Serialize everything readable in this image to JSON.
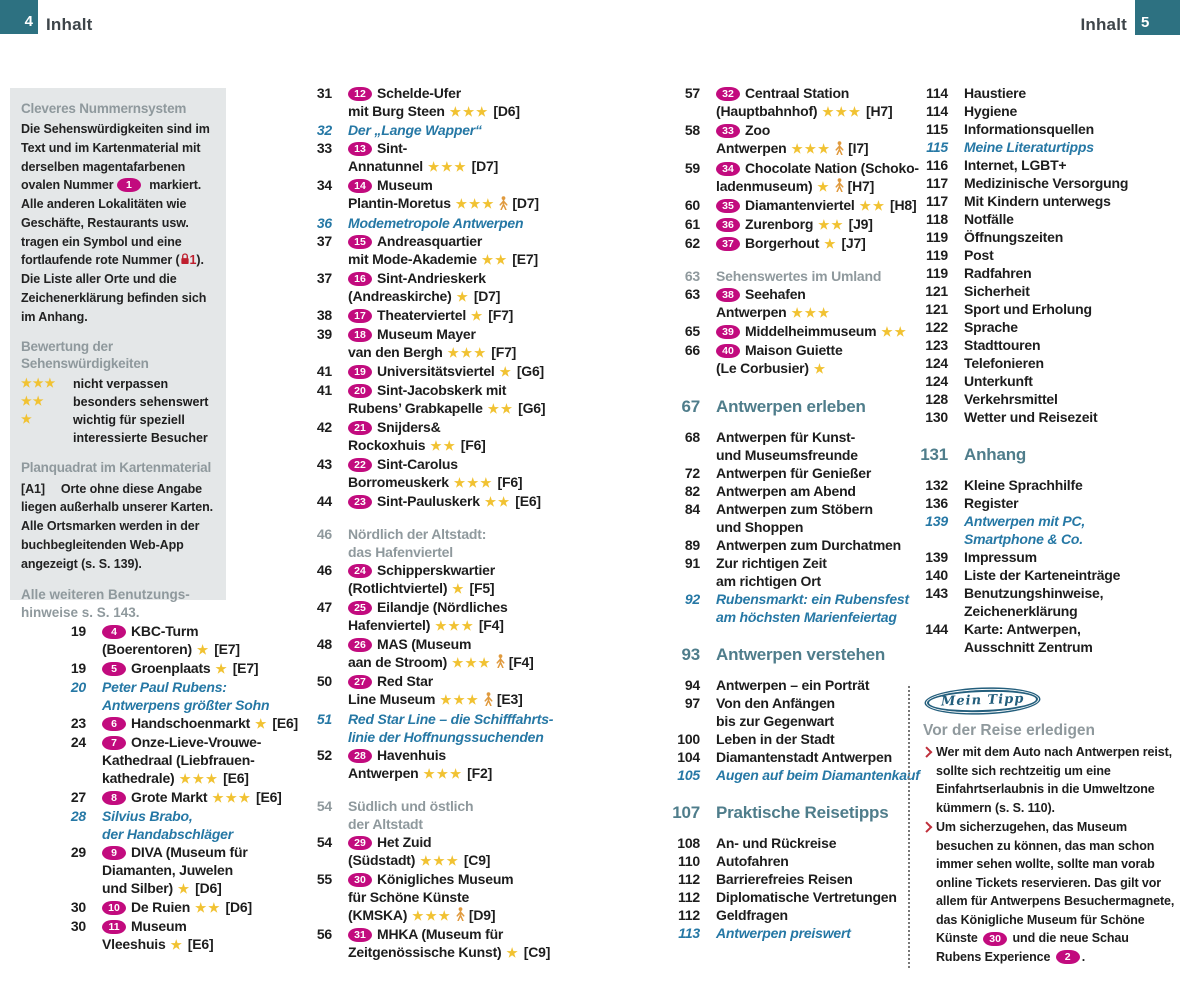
{
  "colors": {
    "teal": "#2d7181",
    "chapter": "#4f7d8b",
    "gray_heading": "#8f999d",
    "magenta": "#c20b7e",
    "link_blue": "#2678a5",
    "star_gold": "#f1c232",
    "red": "#bf2e3a",
    "box_bg": "#e4e7e8",
    "person_orange": "#e09a3e"
  },
  "header": {
    "left_page": "4",
    "left_title": "Inhalt",
    "right_title": "Inhalt",
    "right_page": "5"
  },
  "info_box": {
    "numbering": {
      "heading": "Cleveres Nummernsystem",
      "segments": [
        {
          "text": "Die Sehenswürdigkeiten sind im Text und im Kartenmaterial mit derselben magentafarbenen ovalen Nummer "
        },
        {
          "oval": "1"
        },
        {
          "text": " markiert. Alle anderen Lokalitäten wie Geschäfte, Restaurants usw. tragen ein Symbol und eine fortlaufende rote Nummer ("
        },
        {
          "icon": "red-symbol",
          "red_num": "1"
        },
        {
          "text": "). Die Liste aller Orte und die Zeichenerklärung befinden sich im Anhang."
        }
      ]
    },
    "rating": {
      "heading_lines": [
        "Bewertung der",
        "Sehenswürdigkeiten"
      ],
      "rows": [
        {
          "stars": 3,
          "label_lines": [
            "nicht verpassen"
          ]
        },
        {
          "stars": 2,
          "label_lines": [
            "besonders sehenswert"
          ]
        },
        {
          "stars": 1,
          "label_lines": [
            "wichtig für speziell",
            "interessierte Besucher"
          ]
        }
      ]
    },
    "grid": {
      "heading": "Planquadrat im Kartenmaterial",
      "tag": "[A1]",
      "body": "Orte ohne diese Angabe liegen außerhalb unserer Karten. Alle Ortsmarken werden in der buchbegleitenden Web-App angezeigt (s. S. 139)."
    },
    "footer_lines": [
      "Alle weiteren Benutzungs-",
      "hinweise s. S. 143."
    ]
  },
  "columns": [
    [
      {
        "page": "19",
        "type": "sight",
        "num": "4",
        "lines": [
          "KBC-Turm",
          "(Boerentoren)"
        ],
        "stars": 1,
        "grid": "[E7]"
      },
      {
        "page": "19",
        "type": "sight",
        "num": "5",
        "lines": [
          "Groenplaats"
        ],
        "stars": 1,
        "grid": "[E7]"
      },
      {
        "page": "20",
        "type": "link",
        "lines": [
          "Peter Paul Rubens:",
          "Antwerpens größter Sohn"
        ]
      },
      {
        "page": "23",
        "type": "sight",
        "num": "6",
        "lines": [
          "Handschoenmarkt"
        ],
        "stars": 1,
        "grid": "[E6]"
      },
      {
        "page": "24",
        "type": "sight",
        "num": "7",
        "lines": [
          "Onze-Lieve-Vrouwe-",
          "Kathedraal (Liebfrauen-",
          "kathedrale)"
        ],
        "stars": 3,
        "grid": "[E6]"
      },
      {
        "page": "27",
        "type": "sight",
        "num": "8",
        "lines": [
          "Grote Markt"
        ],
        "stars": 3,
        "grid": "[E6]"
      },
      {
        "page": "28",
        "type": "link",
        "lines": [
          "Silvius Brabo,",
          "der Handabschläger"
        ]
      },
      {
        "page": "29",
        "type": "sight",
        "num": "9",
        "lines": [
          "DIVA (Museum für",
          "Diamanten, Juwelen",
          "und Silber)"
        ],
        "stars": 1,
        "grid": "[D6]"
      },
      {
        "page": "30",
        "type": "sight",
        "num": "10",
        "lines": [
          "De Ruien"
        ],
        "stars": 2,
        "grid": "[D6]"
      },
      {
        "page": "30",
        "type": "sight",
        "num": "11",
        "lines": [
          "Museum",
          "Vleeshuis"
        ],
        "stars": 1,
        "grid": "[E6]"
      }
    ],
    [
      {
        "page": "31",
        "type": "sight",
        "num": "12",
        "lines": [
          "Schelde-Ufer",
          "mit Burg Steen"
        ],
        "stars": 3,
        "grid": "[D6]"
      },
      {
        "page": "32",
        "type": "link",
        "lines": [
          "Der „Lange Wapper“"
        ]
      },
      {
        "page": "33",
        "type": "sight",
        "num": "13",
        "lines": [
          "Sint-",
          "Annatunnel"
        ],
        "stars": 3,
        "grid": "[D7]"
      },
      {
        "page": "34",
        "type": "sight",
        "num": "14",
        "lines": [
          "Museum",
          "Plantin-Moretus"
        ],
        "stars": 3,
        "person": true,
        "grid": "[D7]"
      },
      {
        "page": "36",
        "type": "link",
        "lines": [
          "Modemetropole Antwerpen"
        ]
      },
      {
        "page": "37",
        "type": "sight",
        "num": "15",
        "lines": [
          "Andreasquartier",
          "mit Mode-Akademie"
        ],
        "stars": 2,
        "grid": "[E7]"
      },
      {
        "page": "37",
        "type": "sight",
        "num": "16",
        "lines": [
          "Sint-Andrieskerk",
          "(Andreaskirche)"
        ],
        "stars": 1,
        "grid": "[D7]"
      },
      {
        "page": "38",
        "type": "sight",
        "num": "17",
        "lines": [
          "Theaterviertel"
        ],
        "stars": 1,
        "grid": "[F7]"
      },
      {
        "page": "39",
        "type": "sight",
        "num": "18",
        "lines": [
          "Museum Mayer",
          "van den Bergh"
        ],
        "stars": 3,
        "grid": "[F7]"
      },
      {
        "page": "41",
        "type": "sight",
        "num": "19",
        "lines": [
          "Universitätsviertel"
        ],
        "stars": 1,
        "grid": "[G6]"
      },
      {
        "page": "41",
        "type": "sight",
        "num": "20",
        "lines": [
          "Sint-Jacobskerk mit",
          "Rubens’ Grabkapelle"
        ],
        "stars": 2,
        "grid": "[G6]"
      },
      {
        "page": "42",
        "type": "sight",
        "num": "21",
        "lines": [
          "Snijders&",
          "Rockoxhuis"
        ],
        "stars": 2,
        "grid": "[F6]"
      },
      {
        "page": "43",
        "type": "sight",
        "num": "22",
        "lines": [
          "Sint-Carolus",
          "Borromeuskerk"
        ],
        "stars": 3,
        "grid": "[F6]"
      },
      {
        "page": "44",
        "type": "sight",
        "num": "23",
        "lines": [
          "Sint-Pauluskerk"
        ],
        "stars": 2,
        "grid": "[E6]"
      },
      {
        "page": "46",
        "type": "subhead",
        "lines": [
          "Nördlich der Altstadt:",
          "das Hafenviertel"
        ]
      },
      {
        "page": "46",
        "type": "sight",
        "num": "24",
        "lines": [
          "Schipperskwartier",
          "(Rotlichtviertel)"
        ],
        "stars": 1,
        "grid": "[F5]"
      },
      {
        "page": "47",
        "type": "sight",
        "num": "25",
        "lines": [
          "Eilandje (Nördliches",
          "Hafenviertel)"
        ],
        "stars": 3,
        "grid": "[F4]"
      },
      {
        "page": "48",
        "type": "sight",
        "num": "26",
        "lines": [
          "MAS (Museum",
          "aan de Stroom)"
        ],
        "stars": 3,
        "person": true,
        "grid": "[F4]"
      },
      {
        "page": "50",
        "type": "sight",
        "num": "27",
        "lines": [
          "Red Star",
          "Line Museum"
        ],
        "stars": 3,
        "person": true,
        "grid": "[E3]"
      },
      {
        "page": "51",
        "type": "link",
        "lines": [
          "Red Star Line – die Schifffahrts-",
          "linie der Hoffnungssuchenden"
        ]
      },
      {
        "page": "52",
        "type": "sight",
        "num": "28",
        "lines": [
          "Havenhuis",
          "Antwerpen"
        ],
        "stars": 3,
        "grid": "[F2]"
      },
      {
        "page": "54",
        "type": "subhead",
        "lines": [
          "Südlich und östlich",
          "der Altstadt"
        ]
      },
      {
        "page": "54",
        "type": "sight",
        "num": "29",
        "lines": [
          "Het Zuid",
          "(Südstadt)"
        ],
        "stars": 3,
        "grid": "[C9]"
      },
      {
        "page": "55",
        "type": "sight",
        "num": "30",
        "lines": [
          "Königliches Museum",
          "für Schöne Künste",
          "(KMSKA)"
        ],
        "stars": 3,
        "person": true,
        "grid": "[D9]"
      },
      {
        "page": "56",
        "type": "sight",
        "num": "31",
        "lines": [
          "MHKA (Museum für",
          "Zeitgenössische Kunst)"
        ],
        "stars": 1,
        "grid": "[C9]"
      }
    ],
    [
      {
        "page": "57",
        "type": "sight",
        "num": "32",
        "lines": [
          "Centraal Station",
          "(Hauptbahnhof)"
        ],
        "stars": 3,
        "grid": "[H7]"
      },
      {
        "page": "58",
        "type": "sight",
        "num": "33",
        "lines": [
          "Zoo",
          "Antwerpen"
        ],
        "stars": 3,
        "person": true,
        "grid": "[I7]"
      },
      {
        "page": "59",
        "type": "sight",
        "num": "34",
        "lines": [
          "Chocolate Nation (Schoko-",
          "ladenmuseum)"
        ],
        "stars": 1,
        "person": true,
        "grid": "[H7]"
      },
      {
        "page": "60",
        "type": "sight",
        "num": "35",
        "lines": [
          "Diamantenviertel"
        ],
        "stars": 2,
        "grid": "[H8]"
      },
      {
        "page": "61",
        "type": "sight",
        "num": "36",
        "lines": [
          "Zurenborg"
        ],
        "stars": 2,
        "grid": "[J9]"
      },
      {
        "page": "62",
        "type": "sight",
        "num": "37",
        "lines": [
          "Borgerhout"
        ],
        "stars": 1,
        "grid": "[J7]"
      },
      {
        "page": "63",
        "type": "subhead",
        "lines": [
          "Sehenswertes im Umland"
        ]
      },
      {
        "page": "63",
        "type": "sight",
        "num": "38",
        "lines": [
          "Seehafen",
          "Antwerpen"
        ],
        "stars": 3
      },
      {
        "page": "65",
        "type": "sight",
        "num": "39",
        "lines": [
          "Middelheimmuseum"
        ],
        "stars": 2
      },
      {
        "page": "66",
        "type": "sight",
        "num": "40",
        "lines": [
          "Maison Guiette",
          "(Le Corbusier)"
        ],
        "stars": 1
      },
      {
        "page": "67",
        "type": "chapter",
        "lines": [
          "Antwerpen erleben"
        ]
      },
      {
        "page": "68",
        "type": "plain",
        "lines": [
          "Antwerpen für Kunst-",
          "und Museumsfreunde"
        ]
      },
      {
        "page": "72",
        "type": "plain",
        "lines": [
          "Antwerpen für Genießer"
        ]
      },
      {
        "page": "82",
        "type": "plain",
        "lines": [
          "Antwerpen am Abend"
        ]
      },
      {
        "page": "84",
        "type": "plain",
        "lines": [
          "Antwerpen zum Stöbern",
          "und Shoppen"
        ]
      },
      {
        "page": "89",
        "type": "plain",
        "lines": [
          "Antwerpen zum Durchatmen"
        ]
      },
      {
        "page": "91",
        "type": "plain",
        "lines": [
          "Zur richtigen Zeit",
          "am richtigen Ort"
        ]
      },
      {
        "page": "92",
        "type": "link",
        "lines": [
          "Rubensmarkt: ein Rubensfest",
          "am höchsten Marienfeiertag"
        ]
      },
      {
        "page": "93",
        "type": "chapter",
        "lines": [
          "Antwerpen verstehen"
        ]
      },
      {
        "page": "94",
        "type": "plain",
        "lines": [
          "Antwerpen – ein Porträt"
        ]
      },
      {
        "page": "97",
        "type": "plain",
        "lines": [
          "Von den Anfängen",
          "bis zur Gegenwart"
        ]
      },
      {
        "page": "100",
        "type": "plain",
        "lines": [
          "Leben in der Stadt"
        ]
      },
      {
        "page": "104",
        "type": "plain",
        "lines": [
          "Diamantenstadt Antwerpen"
        ]
      },
      {
        "page": "105",
        "type": "link",
        "lines": [
          "Augen auf beim Diamantenkauf"
        ]
      },
      {
        "page": "107",
        "type": "chapter",
        "lines": [
          "Praktische Reisetipps"
        ]
      },
      {
        "page": "108",
        "type": "plain",
        "lines": [
          "An- und Rückreise"
        ]
      },
      {
        "page": "110",
        "type": "plain",
        "lines": [
          "Autofahren"
        ]
      },
      {
        "page": "112",
        "type": "plain",
        "lines": [
          "Barrierefreies Reisen"
        ]
      },
      {
        "page": "112",
        "type": "plain",
        "lines": [
          "Diplomatische Vertretungen"
        ]
      },
      {
        "page": "112",
        "type": "plain",
        "lines": [
          "Geldfragen"
        ]
      },
      {
        "page": "113",
        "type": "link",
        "lines": [
          "Antwerpen preiswert"
        ]
      }
    ],
    [
      {
        "page": "114",
        "type": "plain",
        "lines": [
          "Haustiere"
        ]
      },
      {
        "page": "114",
        "type": "plain",
        "lines": [
          "Hygiene"
        ]
      },
      {
        "page": "115",
        "type": "plain",
        "lines": [
          "Informationsquellen"
        ]
      },
      {
        "page": "115",
        "type": "link",
        "lines": [
          "Meine Literaturtipps"
        ]
      },
      {
        "page": "116",
        "type": "plain",
        "lines": [
          "Internet, LGBT+"
        ]
      },
      {
        "page": "117",
        "type": "plain",
        "lines": [
          "Medizinische Versorgung"
        ]
      },
      {
        "page": "117",
        "type": "plain",
        "lines": [
          "Mit Kindern unterwegs"
        ]
      },
      {
        "page": "118",
        "type": "plain",
        "lines": [
          "Notfälle"
        ]
      },
      {
        "page": "119",
        "type": "plain",
        "lines": [
          "Öffnungszeiten"
        ]
      },
      {
        "page": "119",
        "type": "plain",
        "lines": [
          "Post"
        ]
      },
      {
        "page": "119",
        "type": "plain",
        "lines": [
          "Radfahren"
        ]
      },
      {
        "page": "121",
        "type": "plain",
        "lines": [
          "Sicherheit"
        ]
      },
      {
        "page": "121",
        "type": "plain",
        "lines": [
          "Sport und Erholung"
        ]
      },
      {
        "page": "122",
        "type": "plain",
        "lines": [
          "Sprache"
        ]
      },
      {
        "page": "123",
        "type": "plain",
        "lines": [
          "Stadttouren"
        ]
      },
      {
        "page": "124",
        "type": "plain",
        "lines": [
          "Telefonieren"
        ]
      },
      {
        "page": "124",
        "type": "plain",
        "lines": [
          "Unterkunft"
        ]
      },
      {
        "page": "128",
        "type": "plain",
        "lines": [
          "Verkehrsmittel"
        ]
      },
      {
        "page": "130",
        "type": "plain",
        "lines": [
          "Wetter und Reisezeit"
        ]
      },
      {
        "page": "131",
        "type": "chapter",
        "lines": [
          "Anhang"
        ]
      },
      {
        "page": "132",
        "type": "plain",
        "lines": [
          "Kleine Sprachhilfe"
        ]
      },
      {
        "page": "136",
        "type": "plain",
        "lines": [
          "Register"
        ]
      },
      {
        "page": "139",
        "type": "link",
        "lines": [
          "Antwerpen mit PC,",
          "Smartphone & Co."
        ]
      },
      {
        "page": "139",
        "type": "plain",
        "lines": [
          "Impressum"
        ]
      },
      {
        "page": "140",
        "type": "plain",
        "lines": [
          "Liste der Karteneinträge"
        ]
      },
      {
        "page": "143",
        "type": "plain",
        "lines": [
          "Benutzungshinweise,",
          "Zeichenerklärung"
        ]
      },
      {
        "page": "144",
        "type": "plain",
        "lines": [
          "Karte: Antwerpen,",
          "Ausschnitt Zentrum"
        ]
      }
    ]
  ],
  "tip_box": {
    "label": "Mein Tipp",
    "heading": "Vor der Reise erledigen",
    "tips": [
      {
        "segments": [
          {
            "text": "Wer mit dem Auto nach Antwerpen reist, sollte sich rechtzeitig um eine "
          },
          {
            "text": "Einfahrtserlaubnis in die Umweltzone",
            "bold": true
          },
          {
            "text": " kümmern (s. S. 110)."
          }
        ]
      },
      {
        "segments": [
          {
            "text": "Um sicherzugehen, das Museum besuchen zu können, das man schon immer sehen wollte, sollte man vorab online Tickets reservieren. Das gilt vor allem für Antwerpens Besuchermagnete, das "
          },
          {
            "text": "Königliche Museum für Schöne Künste",
            "bold": true
          },
          {
            "text": " "
          },
          {
            "oval": "30"
          },
          {
            "text": " und die neue Schau "
          },
          {
            "text": "Rubens Experience",
            "bold": true
          },
          {
            "text": " "
          },
          {
            "oval": "2"
          },
          {
            "text": "."
          }
        ]
      }
    ]
  }
}
